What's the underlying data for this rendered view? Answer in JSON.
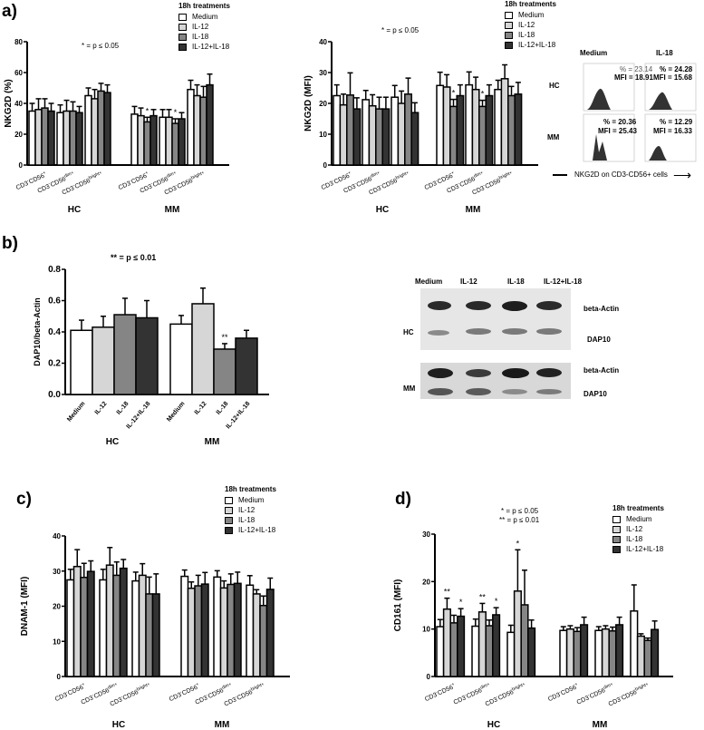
{
  "figure": {
    "panels": {
      "a": {
        "letter": "a)",
        "sig_note": "* = p ≤ 0.05"
      },
      "a2": {
        "sig_note": "* = p ≤ 0.05"
      },
      "b": {
        "letter": "b)",
        "sig_note": "** = p ≤ 0.01"
      },
      "c": {
        "letter": "c)"
      },
      "d": {
        "letter": "d)",
        "sig_note_1": "* = p ≤ 0.05",
        "sig_note_2": "** = p ≤ 0.01"
      }
    },
    "legend": {
      "title": "18h treatments",
      "items": [
        {
          "label": "Medium",
          "color": "#ffffff"
        },
        {
          "label": "IL-12",
          "color": "#d6d6d6"
        },
        {
          "label": "IL-18",
          "color": "#858585"
        },
        {
          "label": "IL-12+IL-18",
          "color": "#333333"
        }
      ]
    },
    "flow_inset": {
      "col_headers": [
        "Medium",
        "IL-18"
      ],
      "row_headers": [
        "HC",
        "MM"
      ],
      "cells": [
        {
          "pct": "% = 23.14",
          "mfi": "MFI = 18.91"
        },
        {
          "pct": "% = 24.28",
          "mfi": "MFI = 15.68"
        },
        {
          "pct": "% = 20.36",
          "mfi": "MFI = 25.43"
        },
        {
          "pct": "% = 12.29",
          "mfi": "MFI = 16.33"
        }
      ],
      "axis_caption": "NKG2D on CD3-CD56+ cells"
    },
    "western_blot": {
      "lanes": [
        "Medium",
        "IL-12",
        "IL-18",
        "IL-12+IL-18"
      ],
      "groups": [
        "HC",
        "MM"
      ],
      "bands": [
        "beta-Actin",
        "DAP10"
      ]
    }
  },
  "chart_data": [
    {
      "id": "a-left",
      "type": "bar",
      "title": "",
      "ylabel": "NKG2D (%)",
      "ylim": [
        0,
        80
      ],
      "yticks": [
        0,
        20,
        40,
        60,
        80
      ],
      "groups": [
        "HC",
        "MM"
      ],
      "categories": [
        "CD3-CD56+",
        "CD3-CD56dim+",
        "CD3-CD56bright+",
        "CD3-CD56+",
        "CD3-CD56dim+",
        "CD3-CD56bright+"
      ],
      "series": [
        {
          "name": "Medium",
          "values": [
            35,
            34,
            45,
            33,
            31,
            49
          ],
          "errors": [
            5,
            5,
            5,
            5,
            5,
            6
          ]
        },
        {
          "name": "IL-12",
          "values": [
            36,
            35,
            43,
            32,
            31,
            45
          ],
          "errors": [
            7,
            7,
            6,
            5,
            5,
            7
          ]
        },
        {
          "name": "IL-18",
          "values": [
            37,
            35,
            48,
            28,
            27,
            44
          ],
          "errors": [
            6,
            6,
            5,
            3,
            3,
            7
          ]
        },
        {
          "name": "IL-12+IL-18",
          "values": [
            35,
            34,
            47,
            32,
            30,
            52
          ],
          "errors": [
            5,
            4,
            5,
            4,
            4,
            7
          ]
        }
      ],
      "annotations": [
        {
          "category": 3,
          "text": "*"
        },
        {
          "category": 4,
          "text": "*"
        }
      ]
    },
    {
      "id": "a-right",
      "type": "bar",
      "title": "",
      "ylabel": "NKG2D (MFI)",
      "ylim": [
        0,
        40
      ],
      "yticks": [
        0,
        10,
        20,
        30,
        40
      ],
      "groups": [
        "HC",
        "MM"
      ],
      "categories": [
        "CD3-CD56+",
        "CD3-CD56dim+",
        "CD3-CD56bright+",
        "CD3-CD56+",
        "CD3-CD56dim+",
        "CD3-CD56bright+"
      ],
      "series": [
        {
          "name": "Medium",
          "values": [
            22.5,
            21.2,
            22,
            25.8,
            26,
            24.5
          ],
          "errors": [
            3.5,
            3,
            3.8,
            4.3,
            4.2,
            3
          ]
        },
        {
          "name": "IL-12",
          "values": [
            19.5,
            19.2,
            20,
            25.3,
            24.5,
            28
          ],
          "errors": [
            3.5,
            3.6,
            4,
            4,
            4,
            4.5
          ]
        },
        {
          "name": "IL-18",
          "values": [
            22.7,
            18.2,
            23,
            19,
            19,
            22.5
          ],
          "errors": [
            7.2,
            3.8,
            5.2,
            2.3,
            2,
            3
          ]
        },
        {
          "name": "IL-12+IL-18",
          "values": [
            18.2,
            18.2,
            17,
            22.5,
            22.5,
            23
          ],
          "errors": [
            3.6,
            3.8,
            3.2,
            3.5,
            3.5,
            3.8
          ]
        }
      ],
      "annotations": [
        {
          "category": 3,
          "text": "*"
        },
        {
          "category": 4,
          "text": "*"
        }
      ]
    },
    {
      "id": "b",
      "type": "bar",
      "title": "",
      "ylabel": "DAP10/beta-Actin",
      "ylim": [
        0,
        0.8
      ],
      "yticks": [
        "0.0",
        "0.2",
        "0.4",
        "0.6",
        "0.8"
      ],
      "groups": [
        "HC",
        "MM"
      ],
      "categories": [
        "Medium",
        "IL-12",
        "IL-18",
        "IL-12+IL-18",
        "Medium",
        "IL-12",
        "IL-18",
        "IL-12+IL-18"
      ],
      "values": [
        0.41,
        0.43,
        0.51,
        0.49,
        0.45,
        0.58,
        0.29,
        0.36
      ],
      "errors": [
        0.065,
        0.07,
        0.105,
        0.11,
        0.055,
        0.1,
        0.035,
        0.05
      ],
      "annotations": [
        {
          "category": 6,
          "text": "**"
        }
      ]
    },
    {
      "id": "c",
      "type": "bar",
      "title": "",
      "ylabel": "DNAM-1 (MFI)",
      "ylim": [
        0,
        40
      ],
      "yticks": [
        0,
        10,
        20,
        30,
        40
      ],
      "groups": [
        "HC",
        "MM"
      ],
      "categories": [
        "CD3-CD56+",
        "CD3-CD56dim+",
        "CD3-CD56bright+",
        "CD3-CD56+",
        "CD3-CD56dim+",
        "CD3-CD56bright+"
      ],
      "series": [
        {
          "name": "Medium",
          "values": [
            27.5,
            27.5,
            27.2,
            28.5,
            28.3,
            26
          ],
          "errors": [
            3,
            3,
            2.5,
            1.8,
            1.8,
            2.7
          ]
        },
        {
          "name": "IL-12",
          "values": [
            31.3,
            31.7,
            28.8,
            25.1,
            25.2,
            23.5
          ],
          "errors": [
            4.8,
            5,
            3.3,
            1.8,
            2,
            1.2
          ]
        },
        {
          "name": "IL-18",
          "values": [
            28.2,
            28.8,
            23.5,
            25.8,
            26.2,
            20.2
          ],
          "errors": [
            4,
            3.8,
            4.8,
            3,
            3,
            2.7
          ]
        },
        {
          "name": "IL-12+IL-18",
          "values": [
            29.9,
            30.8,
            23.5,
            26.3,
            26.5,
            24.8
          ],
          "errors": [
            3,
            2.5,
            5.7,
            3.3,
            3.2,
            3.2
          ]
        }
      ]
    },
    {
      "id": "d",
      "type": "bar",
      "title": "",
      "ylabel": "CD161 (MFI)",
      "ylim": [
        0,
        30
      ],
      "yticks": [
        0,
        10,
        20,
        30
      ],
      "groups": [
        "HC",
        "MM"
      ],
      "categories": [
        "CD3-CD56+",
        "CD3-CD56dim+",
        "CD3-CD56bright+",
        "CD3-CD56+",
        "CD3-CD56dim+",
        "CD3-CD56bright+"
      ],
      "series": [
        {
          "name": "Medium",
          "values": [
            10.5,
            10.6,
            9.3,
            9.7,
            9.7,
            13.8
          ],
          "errors": [
            1.5,
            1.5,
            1.5,
            0.8,
            0.8,
            5.5
          ]
        },
        {
          "name": "IL-12",
          "values": [
            14.2,
            13.6,
            18,
            10,
            10,
            8.5
          ],
          "errors": [
            2.3,
            1.8,
            8.7,
            0.7,
            0.7,
            0.5
          ]
        },
        {
          "name": "IL-18",
          "values": [
            11.3,
            10.7,
            15.1,
            9.5,
            9.6,
            7.6
          ],
          "errors": [
            1.6,
            1.2,
            7.3,
            0.8,
            0.8,
            0.5
          ]
        },
        {
          "name": "IL-12+IL-18",
          "values": [
            12.7,
            13,
            10.2,
            10.9,
            10.9,
            9.9
          ],
          "errors": [
            1.6,
            1.5,
            1.7,
            1.6,
            1.6,
            1.8
          ]
        }
      ],
      "annotations": [
        {
          "category": 0,
          "series": 1,
          "text": "**"
        },
        {
          "category": 0,
          "series": 3,
          "text": "*"
        },
        {
          "category": 1,
          "series": 1,
          "text": "**"
        },
        {
          "category": 1,
          "series": 3,
          "text": "*"
        },
        {
          "category": 2,
          "series": 1,
          "text": "*"
        }
      ]
    }
  ]
}
